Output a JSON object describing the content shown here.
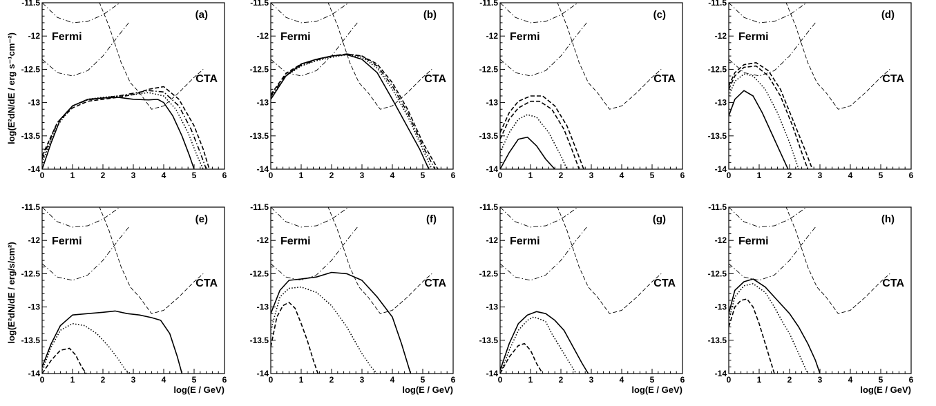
{
  "figure": {
    "ylabel_top": "log(E²dN/dE / erg s⁻¹cm⁻²)",
    "ylabel_bottom": "log(E²dN/dE / erg/s/cm²)",
    "xlabel": "log(E / GeV)",
    "fermi_label": "Fermi",
    "cta_label": "CTA",
    "xlim": [
      0,
      6
    ],
    "ylim": [
      -14,
      -11.5
    ],
    "xticks": [
      "0",
      "1",
      "2",
      "3",
      "4",
      "5",
      "6"
    ],
    "yticks": [
      "-11.5",
      "-12",
      "-12.5",
      "-13",
      "-13.5",
      "-14"
    ]
  },
  "chart_data": [
    {
      "type": "line",
      "panel": "(a)",
      "xlim": [
        0,
        6
      ],
      "ylim": [
        -14,
        -11.5
      ],
      "series": [
        {
          "style": "solid",
          "x": [
            0,
            0.3,
            0.6,
            1.0,
            1.5,
            2.0,
            2.5,
            3.0,
            3.5,
            3.8,
            4.0,
            4.3,
            4.6,
            4.85,
            5.0
          ],
          "y": [
            -14.0,
            -13.6,
            -13.25,
            -13.05,
            -12.95,
            -12.93,
            -12.92,
            -12.95,
            -12.96,
            -12.95,
            -13.0,
            -13.2,
            -13.5,
            -13.8,
            -14.0
          ]
        },
        {
          "style": "dotted",
          "x": [
            0,
            0.5,
            1.0,
            1.5,
            2.0,
            2.5,
            3.0,
            3.5,
            4.0,
            4.4,
            4.8,
            5.1,
            5.3
          ],
          "y": [
            -13.9,
            -13.35,
            -13.05,
            -12.95,
            -12.92,
            -12.9,
            -12.88,
            -12.85,
            -12.9,
            -13.1,
            -13.45,
            -13.8,
            -14.0
          ]
        },
        {
          "style": "dashdot",
          "x": [
            0,
            0.5,
            1.0,
            1.5,
            2.0,
            2.5,
            3.0,
            3.5,
            4.0,
            4.5,
            4.9,
            5.2,
            5.4
          ],
          "y": [
            -13.85,
            -13.3,
            -13.05,
            -12.96,
            -12.93,
            -12.9,
            -12.86,
            -12.82,
            -12.84,
            -13.05,
            -13.4,
            -13.75,
            -14.0
          ]
        },
        {
          "style": "dashed",
          "x": [
            0,
            0.5,
            1.0,
            1.5,
            2.0,
            2.5,
            3.0,
            3.5,
            4.0,
            4.5,
            5.0,
            5.3,
            5.5
          ],
          "y": [
            -13.8,
            -13.3,
            -13.08,
            -12.98,
            -12.95,
            -12.92,
            -12.88,
            -12.8,
            -12.76,
            -12.95,
            -13.35,
            -13.7,
            -14.0
          ]
        }
      ]
    },
    {
      "type": "line",
      "panel": "(b)",
      "xlim": [
        0,
        6
      ],
      "ylim": [
        -14,
        -11.5
      ],
      "series": [
        {
          "style": "solid",
          "x": [
            0,
            0.5,
            1.0,
            1.5,
            2.0,
            2.5,
            3.0,
            3.5,
            4.0,
            4.3,
            4.6,
            4.9,
            5.1,
            5.2
          ],
          "y": [
            -12.95,
            -12.6,
            -12.42,
            -12.35,
            -12.3,
            -12.28,
            -12.35,
            -12.55,
            -12.95,
            -13.2,
            -13.45,
            -13.7,
            -13.9,
            -14.0
          ]
        },
        {
          "style": "dotted",
          "x": [
            0,
            0.5,
            1.0,
            1.5,
            2.0,
            2.5,
            3.0,
            3.5,
            4.0,
            4.5,
            5.0,
            5.3
          ],
          "y": [
            -12.92,
            -12.6,
            -12.45,
            -12.37,
            -12.32,
            -12.28,
            -12.32,
            -12.48,
            -12.8,
            -13.2,
            -13.7,
            -14.0
          ]
        },
        {
          "style": "dashdot",
          "x": [
            0,
            0.5,
            1.0,
            1.5,
            2.0,
            2.5,
            3.0,
            3.5,
            4.0,
            4.5,
            5.0,
            5.4
          ],
          "y": [
            -12.9,
            -12.58,
            -12.44,
            -12.36,
            -12.3,
            -12.27,
            -12.3,
            -12.45,
            -12.75,
            -13.15,
            -13.65,
            -14.0
          ]
        },
        {
          "style": "dashed",
          "x": [
            0,
            0.5,
            1.0,
            1.5,
            2.0,
            2.5,
            3.0,
            3.5,
            4.0,
            4.5,
            5.0,
            5.5
          ],
          "y": [
            -12.88,
            -12.56,
            -12.42,
            -12.35,
            -12.3,
            -12.27,
            -12.3,
            -12.42,
            -12.7,
            -13.1,
            -13.6,
            -14.0
          ]
        }
      ]
    },
    {
      "type": "line",
      "panel": "(c)",
      "xlim": [
        0,
        6
      ],
      "ylim": [
        -14,
        -11.5
      ],
      "series": [
        {
          "style": "solid",
          "x": [
            0,
            0.3,
            0.6,
            0.9,
            1.2,
            1.5,
            1.8
          ],
          "y": [
            -14.0,
            -13.75,
            -13.55,
            -13.52,
            -13.65,
            -13.85,
            -14.0
          ]
        },
        {
          "style": "dotted",
          "x": [
            0,
            0.3,
            0.6,
            0.9,
            1.2,
            1.6,
            2.0,
            2.2
          ],
          "y": [
            -13.75,
            -13.45,
            -13.25,
            -13.18,
            -13.22,
            -13.45,
            -13.8,
            -14.0
          ]
        },
        {
          "style": "dashed",
          "x": [
            0,
            0.3,
            0.6,
            1.0,
            1.3,
            1.7,
            2.1,
            2.4,
            2.6
          ],
          "y": [
            -13.55,
            -13.25,
            -13.08,
            -12.98,
            -12.98,
            -13.1,
            -13.4,
            -13.75,
            -14.0
          ]
        },
        {
          "style": "dashed",
          "x": [
            0,
            0.3,
            0.6,
            1.0,
            1.4,
            1.8,
            2.2,
            2.5,
            2.75
          ],
          "y": [
            -13.45,
            -13.15,
            -12.98,
            -12.9,
            -12.9,
            -13.05,
            -13.35,
            -13.7,
            -14.0
          ]
        }
      ]
    },
    {
      "type": "line",
      "panel": "(d)",
      "xlim": [
        0,
        6
      ],
      "ylim": [
        -14,
        -11.5
      ],
      "series": [
        {
          "style": "solid",
          "x": [
            0,
            0.2,
            0.5,
            0.8,
            1.1,
            1.4,
            1.7,
            1.95
          ],
          "y": [
            -13.2,
            -12.95,
            -12.82,
            -12.9,
            -13.15,
            -13.45,
            -13.75,
            -14.0
          ]
        },
        {
          "style": "dotted",
          "x": [
            0,
            0.2,
            0.5,
            0.8,
            1.2,
            1.6,
            2.0,
            2.3
          ],
          "y": [
            -12.9,
            -12.68,
            -12.57,
            -12.6,
            -12.8,
            -13.15,
            -13.6,
            -14.0
          ]
        },
        {
          "style": "dashed",
          "x": [
            0,
            0.2,
            0.5,
            0.9,
            1.3,
            1.7,
            2.1,
            2.4,
            2.6
          ],
          "y": [
            -12.8,
            -12.6,
            -12.47,
            -12.45,
            -12.6,
            -12.9,
            -13.35,
            -13.75,
            -14.0
          ]
        },
        {
          "style": "dashed",
          "x": [
            0,
            0.2,
            0.5,
            0.9,
            1.3,
            1.7,
            2.1,
            2.5,
            2.75
          ],
          "y": [
            -12.75,
            -12.55,
            -12.43,
            -12.4,
            -12.52,
            -12.8,
            -13.25,
            -13.7,
            -14.0
          ]
        }
      ]
    },
    {
      "type": "line",
      "panel": "(e)",
      "xlim": [
        0,
        6
      ],
      "ylim": [
        -14,
        -11.5
      ],
      "series": [
        {
          "style": "solid",
          "x": [
            0,
            0.3,
            0.6,
            1.0,
            1.5,
            2.0,
            2.4,
            2.8,
            3.2,
            3.6,
            3.9,
            4.2,
            4.45,
            4.6
          ],
          "y": [
            -13.9,
            -13.55,
            -13.28,
            -13.12,
            -13.1,
            -13.08,
            -13.06,
            -13.1,
            -13.12,
            -13.16,
            -13.2,
            -13.4,
            -13.75,
            -14.0
          ]
        },
        {
          "style": "dotted",
          "x": [
            0,
            0.3,
            0.6,
            1.0,
            1.4,
            1.8,
            2.2,
            2.5,
            2.75,
            2.9
          ],
          "y": [
            -13.95,
            -13.6,
            -13.35,
            -13.25,
            -13.28,
            -13.4,
            -13.6,
            -13.78,
            -13.95,
            -14.0
          ]
        },
        {
          "style": "dashed",
          "x": [
            0,
            0.3,
            0.6,
            0.9,
            1.1,
            1.3,
            1.45
          ],
          "y": [
            -14.0,
            -13.8,
            -13.65,
            -13.62,
            -13.72,
            -13.9,
            -14.0
          ]
        }
      ]
    },
    {
      "type": "line",
      "panel": "(f)",
      "xlim": [
        0,
        6
      ],
      "ylim": [
        -14,
        -11.5
      ],
      "series": [
        {
          "style": "solid",
          "x": [
            0,
            0.3,
            0.6,
            1.0,
            1.5,
            2.0,
            2.5,
            3.0,
            3.5,
            4.0,
            4.3,
            4.6
          ],
          "y": [
            -13.1,
            -12.75,
            -12.6,
            -12.58,
            -12.55,
            -12.48,
            -12.5,
            -12.6,
            -12.85,
            -13.15,
            -13.55,
            -14.0
          ]
        },
        {
          "style": "dotted",
          "x": [
            0,
            0.3,
            0.6,
            1.0,
            1.5,
            2.0,
            2.5,
            3.0,
            3.3,
            3.5
          ],
          "y": [
            -13.35,
            -12.85,
            -12.72,
            -12.7,
            -12.78,
            -12.98,
            -13.3,
            -13.7,
            -13.9,
            -14.0
          ]
        },
        {
          "style": "dashed",
          "x": [
            0,
            0.2,
            0.4,
            0.6,
            0.8,
            1.0,
            1.2,
            1.4,
            1.55
          ],
          "y": [
            -13.6,
            -13.15,
            -12.98,
            -12.93,
            -13.02,
            -13.25,
            -13.5,
            -13.8,
            -14.0
          ]
        }
      ]
    },
    {
      "type": "line",
      "panel": "(g)",
      "xlim": [
        0,
        6
      ],
      "ylim": [
        -14,
        -11.5
      ],
      "series": [
        {
          "style": "solid",
          "x": [
            0,
            0.3,
            0.6,
            0.9,
            1.2,
            1.5,
            1.8,
            2.1,
            2.4,
            2.7,
            2.9
          ],
          "y": [
            -13.95,
            -13.55,
            -13.25,
            -13.12,
            -13.07,
            -13.1,
            -13.2,
            -13.35,
            -13.6,
            -13.85,
            -14.0
          ]
        },
        {
          "style": "dotted",
          "x": [
            0,
            0.3,
            0.6,
            0.9,
            1.1,
            1.3,
            1.5,
            1.7,
            1.9,
            2.1,
            2.3,
            2.5
          ],
          "y": [
            -14.0,
            -13.65,
            -13.35,
            -13.2,
            -13.15,
            -13.18,
            -13.22,
            -13.4,
            -13.55,
            -13.7,
            -13.85,
            -14.0
          ]
        },
        {
          "style": "dashed",
          "x": [
            0,
            0.3,
            0.6,
            0.8,
            1.0,
            1.2,
            1.4
          ],
          "y": [
            -14.0,
            -13.75,
            -13.58,
            -13.55,
            -13.65,
            -13.85,
            -14.0
          ]
        }
      ]
    },
    {
      "type": "line",
      "panel": "(h)",
      "xlim": [
        0,
        6
      ],
      "ylim": [
        -14,
        -11.5
      ],
      "series": [
        {
          "style": "solid",
          "x": [
            0,
            0.2,
            0.5,
            0.8,
            1.2,
            1.6,
            2.0,
            2.3,
            2.6,
            2.85,
            3.0
          ],
          "y": [
            -13.1,
            -12.75,
            -12.62,
            -12.58,
            -12.7,
            -12.9,
            -13.1,
            -13.3,
            -13.55,
            -13.8,
            -14.0
          ]
        },
        {
          "style": "dotted",
          "x": [
            0,
            0.2,
            0.5,
            0.8,
            1.2,
            1.5,
            1.8,
            2.0,
            2.2,
            2.4,
            2.6
          ],
          "y": [
            -13.2,
            -12.85,
            -12.68,
            -12.65,
            -12.78,
            -13.0,
            -13.25,
            -13.4,
            -13.6,
            -13.8,
            -14.0
          ]
        },
        {
          "style": "dashed",
          "x": [
            0,
            0.2,
            0.4,
            0.6,
            0.8,
            1.0,
            1.2,
            1.4,
            1.5
          ],
          "y": [
            -13.3,
            -13.0,
            -12.9,
            -12.88,
            -13.0,
            -13.25,
            -13.55,
            -13.85,
            -14.0
          ]
        }
      ]
    }
  ],
  "sensitivity_curves": {
    "fermi_upper": {
      "style": "dashdot",
      "x": [
        0,
        0.5,
        1.0,
        1.5,
        2.0,
        2.5,
        2.85
      ],
      "y": [
        -11.5,
        -11.72,
        -11.8,
        -11.78,
        -11.68,
        -11.52,
        -11.4
      ]
    },
    "fermi_lower": {
      "style": "dashdot",
      "x": [
        0,
        0.5,
        1.0,
        1.5,
        2.0,
        2.5,
        2.85
      ],
      "y": [
        -12.35,
        -12.55,
        -12.6,
        -12.52,
        -12.3,
        -12.0,
        -11.8
      ]
    },
    "cta": {
      "style": "dashed",
      "x": [
        1.8,
        2.2,
        2.6,
        2.9,
        3.2,
        3.6,
        4.0,
        4.5,
        5.0,
        5.3
      ],
      "y": [
        -11.4,
        -11.85,
        -12.4,
        -12.7,
        -12.85,
        -13.1,
        -13.05,
        -12.85,
        -12.62,
        -12.5
      ]
    }
  }
}
